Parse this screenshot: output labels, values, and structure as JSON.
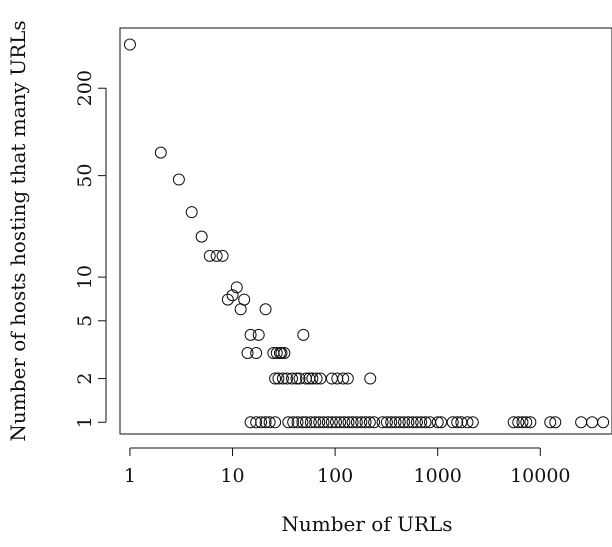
{
  "chart_data": {
    "type": "scatter",
    "title": "",
    "xlabel": "Number of URLs",
    "ylabel": "Number of hosts hosting that many URLs",
    "x_scale": "log",
    "y_scale": "log",
    "xlim": [
      0.8,
      50000
    ],
    "ylim": [
      0.83,
      520
    ],
    "x_ticks": [
      1,
      10,
      100,
      1000,
      10000
    ],
    "x_tick_labels": [
      "1",
      "10",
      "100",
      "1000",
      "10000"
    ],
    "y_ticks": [
      1,
      2,
      5,
      10,
      50,
      200
    ],
    "y_tick_labels": [
      "1",
      "2",
      "5",
      "10",
      "50",
      "200"
    ],
    "grid": false,
    "legend": "none",
    "marker": "open-circle",
    "series": [
      {
        "points": [
          [
            1,
            400
          ],
          [
            2,
            72
          ],
          [
            3,
            47
          ],
          [
            4,
            28
          ],
          [
            5,
            19
          ],
          [
            6,
            14
          ],
          [
            7,
            14
          ],
          [
            8,
            14
          ],
          [
            9,
            7
          ],
          [
            10,
            7.5
          ],
          [
            11,
            8.5
          ],
          [
            12,
            6
          ],
          [
            13,
            7
          ],
          [
            21,
            6
          ],
          [
            15,
            4
          ],
          [
            18,
            4
          ],
          [
            49,
            4
          ],
          [
            14,
            3
          ],
          [
            17,
            3
          ],
          [
            25,
            3
          ],
          [
            27,
            3
          ],
          [
            29,
            3
          ],
          [
            30,
            3
          ],
          [
            32,
            3
          ],
          [
            26,
            2
          ],
          [
            28,
            2
          ],
          [
            31,
            2
          ],
          [
            34,
            2
          ],
          [
            38,
            2
          ],
          [
            42,
            2
          ],
          [
            45,
            2
          ],
          [
            52,
            2
          ],
          [
            56,
            2
          ],
          [
            60,
            2
          ],
          [
            66,
            2
          ],
          [
            72,
            2
          ],
          [
            93,
            2
          ],
          [
            105,
            2
          ],
          [
            120,
            2
          ],
          [
            133,
            2
          ],
          [
            220,
            2
          ],
          [
            15,
            1
          ],
          [
            17,
            1
          ],
          [
            19,
            1
          ],
          [
            21,
            1
          ],
          [
            23,
            1
          ],
          [
            26,
            1
          ],
          [
            35,
            1
          ],
          [
            39,
            1
          ],
          [
            43,
            1
          ],
          [
            48,
            1
          ],
          [
            52,
            1
          ],
          [
            58,
            1
          ],
          [
            64,
            1
          ],
          [
            70,
            1
          ],
          [
            77,
            1
          ],
          [
            85,
            1
          ],
          [
            93,
            1
          ],
          [
            102,
            1
          ],
          [
            112,
            1
          ],
          [
            123,
            1
          ],
          [
            135,
            1
          ],
          [
            148,
            1
          ],
          [
            163,
            1
          ],
          [
            180,
            1
          ],
          [
            198,
            1
          ],
          [
            218,
            1
          ],
          [
            240,
            1
          ],
          [
            290,
            1
          ],
          [
            320,
            1
          ],
          [
            352,
            1
          ],
          [
            388,
            1
          ],
          [
            427,
            1
          ],
          [
            470,
            1
          ],
          [
            518,
            1
          ],
          [
            570,
            1
          ],
          [
            627,
            1
          ],
          [
            690,
            1
          ],
          [
            760,
            1
          ],
          [
            840,
            1
          ],
          [
            1000,
            1
          ],
          [
            1080,
            1
          ],
          [
            1400,
            1
          ],
          [
            1550,
            1
          ],
          [
            1700,
            1
          ],
          [
            1950,
            1
          ],
          [
            2200,
            1
          ],
          [
            5500,
            1
          ],
          [
            6100,
            1
          ],
          [
            6700,
            1
          ],
          [
            7300,
            1
          ],
          [
            8000,
            1
          ],
          [
            12500,
            1
          ],
          [
            14000,
            1
          ],
          [
            25000,
            1
          ],
          [
            32000,
            1
          ],
          [
            41000,
            1
          ]
        ]
      }
    ]
  }
}
